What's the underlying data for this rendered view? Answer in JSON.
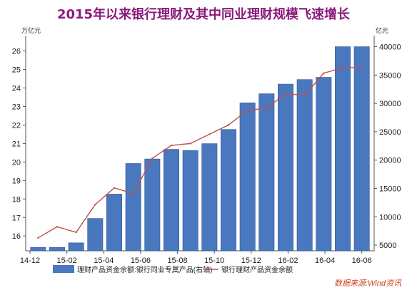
{
  "page": {
    "title": "2015年以来银行理财及其中同业理财规模飞速增长",
    "source": "数据来源:Wind资讯"
  },
  "chart_data": {
    "type": "bar+line",
    "x_ticks": [
      "14-12",
      "15-02",
      "15-04",
      "15-06",
      "15-08",
      "15-10",
      "15-12",
      "16-02",
      "16-04",
      "16-06"
    ],
    "left_axis": {
      "unit": "万亿元",
      "ylim": [
        15.2,
        26.6
      ],
      "ticks": [
        16,
        17,
        18,
        19,
        20,
        21,
        22,
        23,
        24,
        25,
        26
      ]
    },
    "right_axis": {
      "unit": "亿元",
      "ylim": [
        4000,
        41200
      ],
      "ticks": [
        5000,
        10000,
        15000,
        20000,
        25000,
        30000,
        35000,
        40000
      ]
    },
    "series": [
      {
        "name": "理财产品资金余额:银行同业专属产品(右轴)",
        "type": "bar",
        "axis": "right",
        "color": "#4a78be",
        "values": [
          4600,
          4600,
          5400,
          9700,
          14000,
          19400,
          20200,
          21900,
          21700,
          22900,
          25400,
          30100,
          31700,
          33400,
          34200,
          34600,
          40000,
          40000
        ]
      },
      {
        "name": "银行理财产品资金余额",
        "type": "line",
        "axis": "left",
        "color": "#c0504d",
        "values": [
          15.9,
          16.5,
          16.2,
          17.7,
          18.6,
          18.3,
          20.2,
          20.9,
          21.0,
          21.5,
          22.0,
          22.8,
          22.9,
          23.7,
          23.6,
          24.8,
          25.1,
          25.1
        ]
      }
    ],
    "legend": {
      "position": "bottom"
    },
    "grid": false
  }
}
